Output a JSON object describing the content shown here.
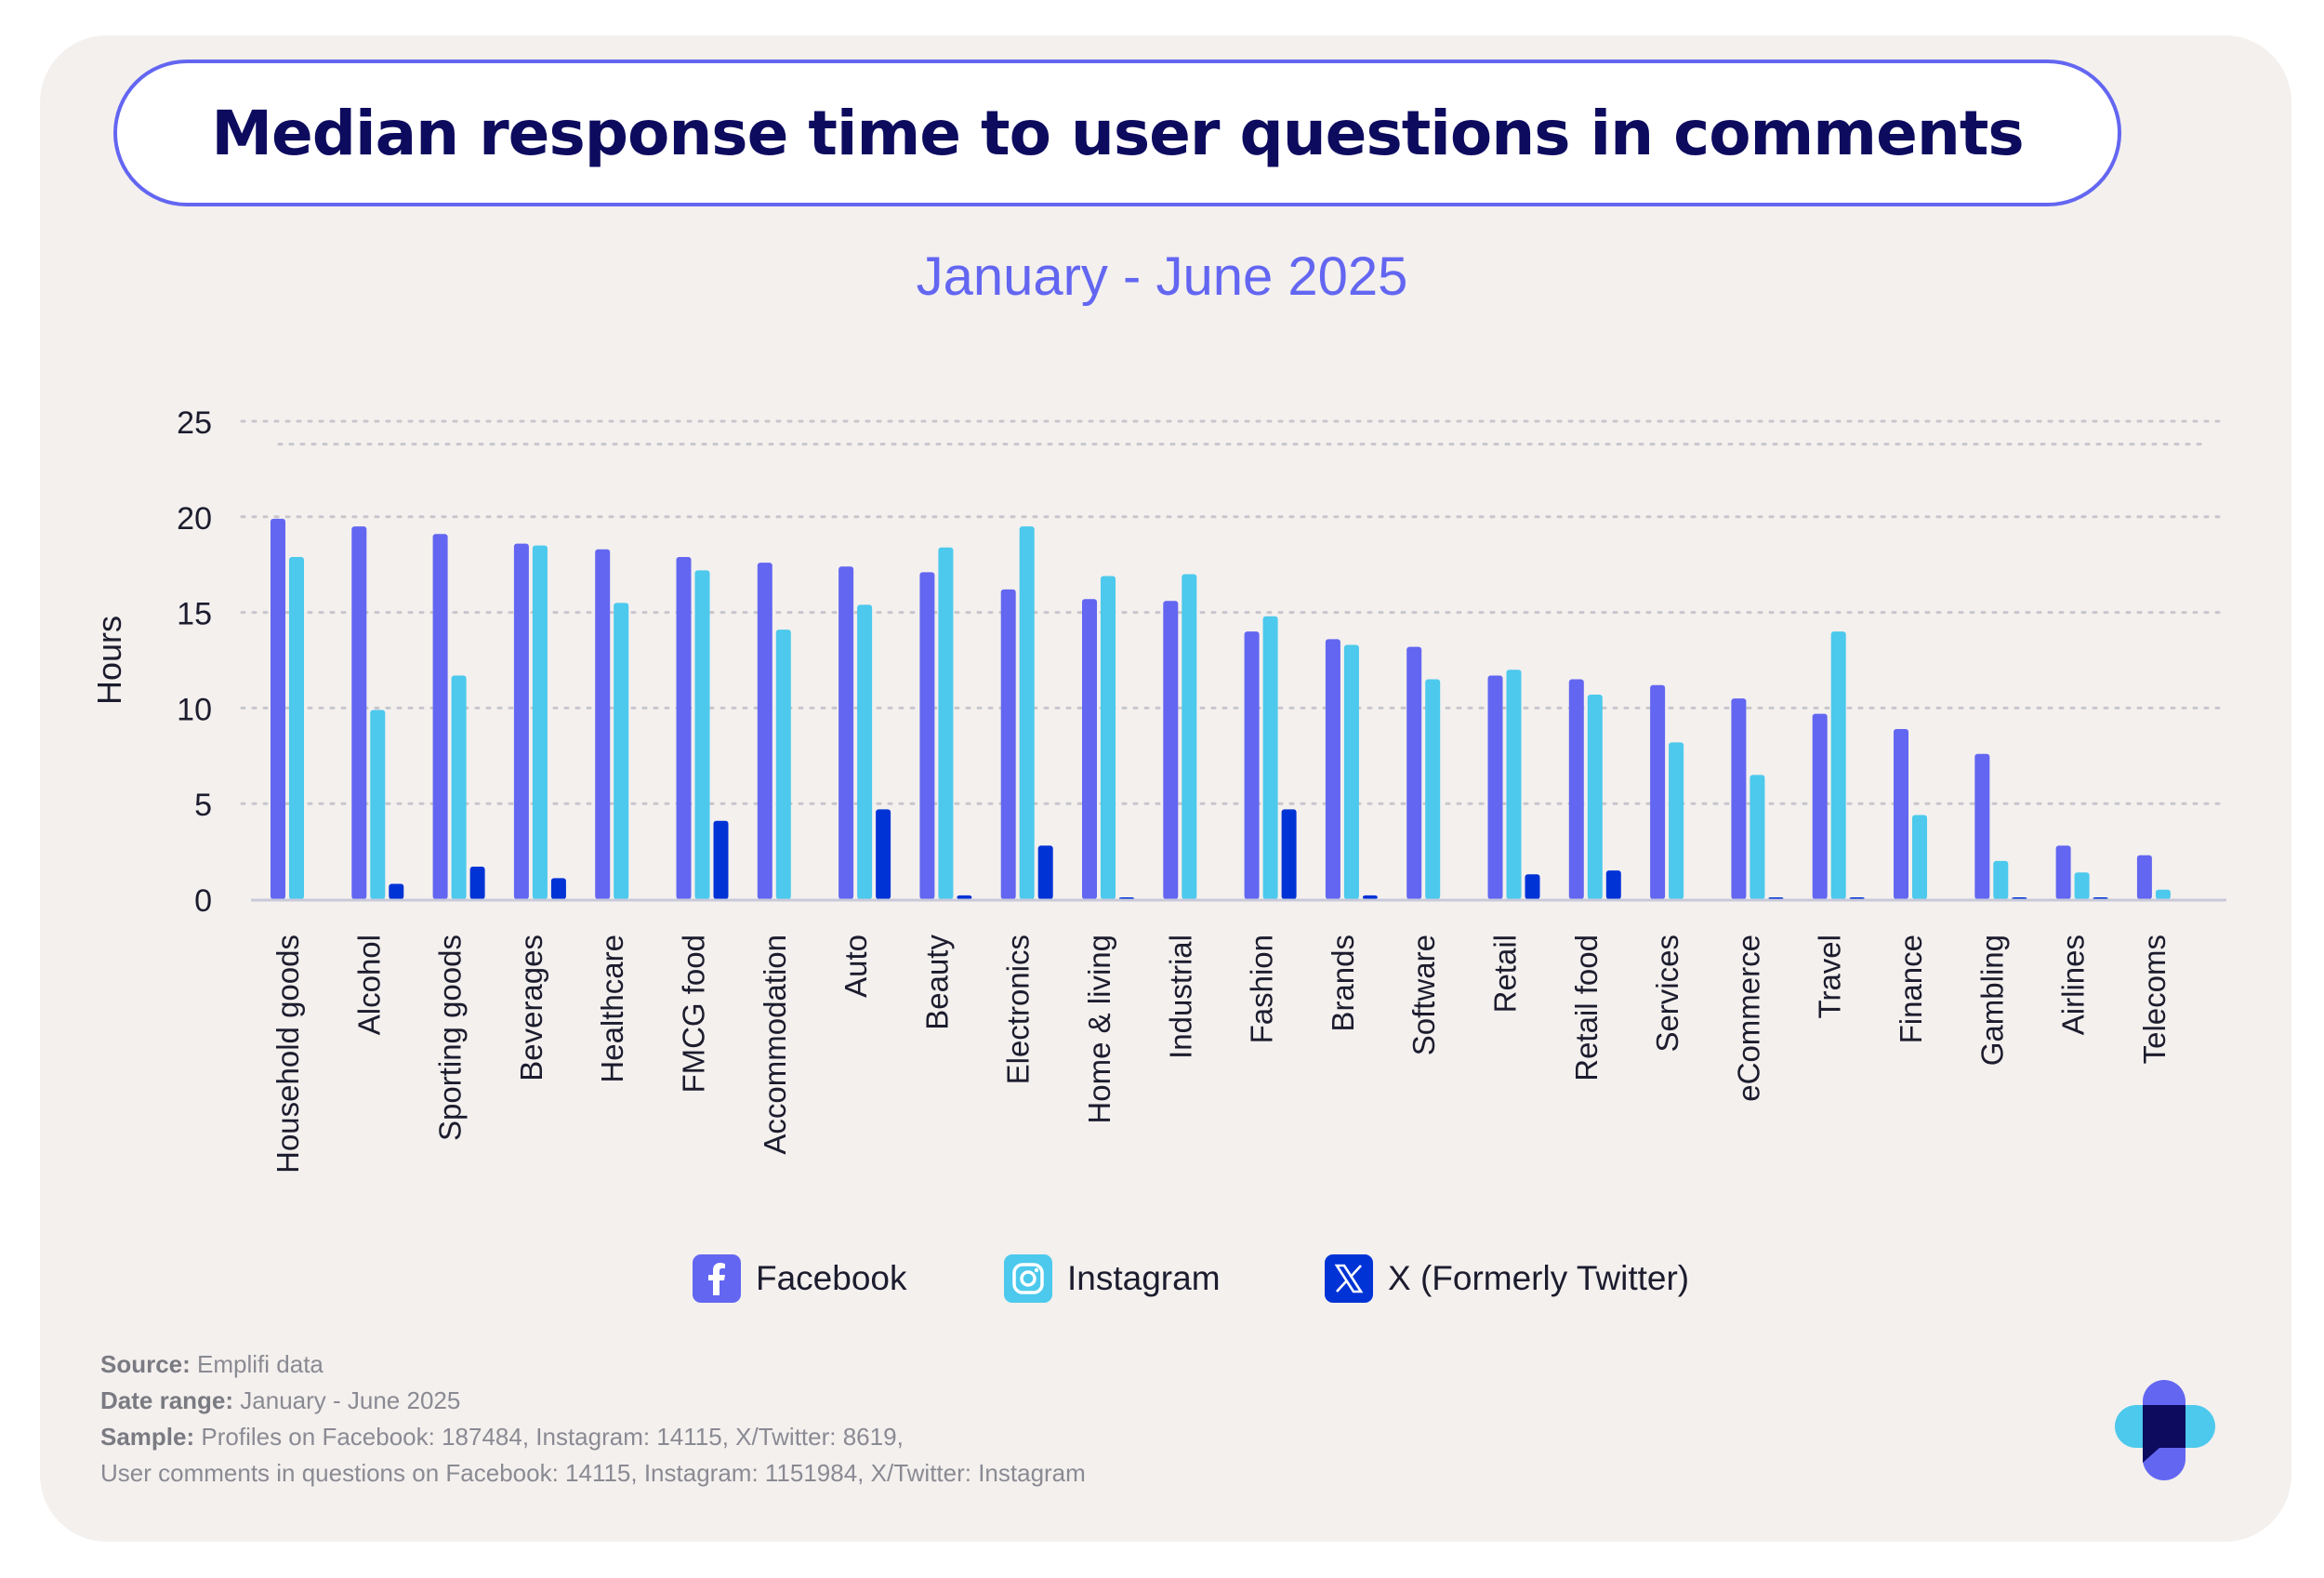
{
  "header": {
    "title": "Median response time to user questions in comments",
    "subtitle": "January - June 2025"
  },
  "chart_data": {
    "type": "bar",
    "ylabel": "Hours",
    "ylim": [
      0,
      25
    ],
    "yticks": [
      "0",
      "5",
      "10",
      "15",
      "20",
      "25"
    ],
    "grid": true,
    "categories": [
      "Household goods",
      "Alcohol",
      "Sporting goods",
      "Beverages",
      "Healthcare",
      "FMCG food",
      "Accommodation",
      "Auto",
      "Beauty",
      "Electronics",
      "Home & living",
      "Industrial",
      "Fashion",
      "Brands",
      "Software",
      "Retail",
      "Retail food",
      "Services",
      "eCommerce",
      "Travel",
      "Finance",
      "Gambling",
      "Airlines",
      "Telecoms"
    ],
    "series": [
      {
        "name": "Facebook",
        "color": "#6366f1",
        "values": [
          19.9,
          19.5,
          19.1,
          18.6,
          18.3,
          17.9,
          17.6,
          17.4,
          17.1,
          16.2,
          15.7,
          15.6,
          14.0,
          13.6,
          13.2,
          11.7,
          11.5,
          11.2,
          10.5,
          9.7,
          8.9,
          7.6,
          2.8,
          2.3
        ]
      },
      {
        "name": "Instagram",
        "color": "#4cc9ec",
        "values": [
          17.9,
          9.9,
          11.7,
          18.5,
          15.5,
          17.2,
          14.1,
          15.4,
          18.4,
          19.5,
          16.9,
          17.0,
          14.8,
          13.3,
          11.5,
          12.0,
          10.7,
          8.2,
          6.5,
          14.0,
          4.4,
          2.0,
          1.4,
          0.5
        ]
      },
      {
        "name": "X (Formerly Twitter)",
        "color": "#0033d6",
        "values": [
          0,
          0.8,
          1.7,
          1.1,
          0,
          4.1,
          0,
          4.7,
          0.2,
          2.8,
          0.1,
          0,
          4.7,
          0.2,
          0,
          1.3,
          1.5,
          0,
          0.1,
          0.1,
          0,
          0.1,
          0.1,
          0
        ]
      }
    ]
  },
  "legend": {
    "items": [
      {
        "label": "Facebook",
        "icon": "facebook-icon",
        "color": "#6366f1"
      },
      {
        "label": "Instagram",
        "icon": "instagram-icon",
        "color": "#4cc9ec"
      },
      {
        "label": "X (Formerly Twitter)",
        "icon": "x-icon",
        "color": "#0033d6"
      }
    ]
  },
  "footer": {
    "source_label": "Source:",
    "source_value": " Emplifi data",
    "date_label": "Date range:",
    "date_value": " January - June 2025",
    "sample_label": "Sample:",
    "sample_value": " Profiles on Facebook: 187484, Instagram: 14115, X/Twitter: 8619,",
    "sample_line2": "User comments in questions on Facebook: 14115, Instagram: 1151984, X/Twitter: Instagram"
  }
}
